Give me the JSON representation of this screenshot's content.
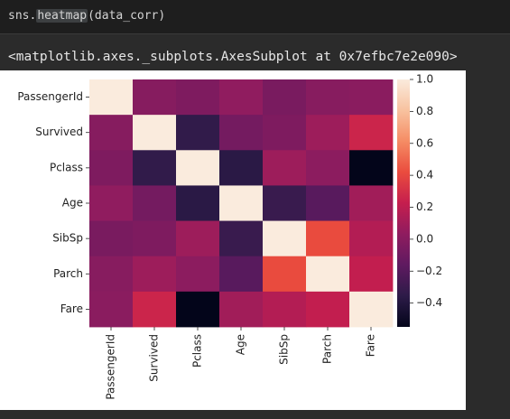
{
  "code_cell": {
    "prefix": "sns.",
    "function": "heatmap",
    "args": "(data_corr)"
  },
  "output": {
    "repr": "<matplotlib.axes._subplots.AxesSubplot at 0x7efbc7e2e090>"
  },
  "chart_data": {
    "type": "heatmap",
    "title": "",
    "xlabel": "",
    "ylabel": "",
    "colormap": "rocket",
    "labels": [
      "PassengerId",
      "Survived",
      "Pclass",
      "Age",
      "SibSp",
      "Parch",
      "Fare"
    ],
    "matrix": [
      [
        1.0,
        -0.005,
        -0.035,
        0.037,
        -0.058,
        -0.002,
        0.013
      ],
      [
        -0.005,
        1.0,
        -0.338,
        -0.077,
        -0.035,
        0.082,
        0.257
      ],
      [
        -0.035,
        -0.338,
        1.0,
        -0.369,
        0.083,
        0.018,
        -0.549
      ],
      [
        0.037,
        -0.077,
        -0.369,
        1.0,
        -0.308,
        -0.189,
        0.096
      ],
      [
        -0.058,
        -0.035,
        0.083,
        -0.308,
        1.0,
        0.415,
        0.16
      ],
      [
        -0.002,
        0.082,
        0.018,
        -0.189,
        0.415,
        1.0,
        0.216
      ],
      [
        0.013,
        0.257,
        -0.549,
        0.096,
        0.16,
        0.216,
        1.0
      ]
    ],
    "vmin": -0.549,
    "vmax": 1.0,
    "colorbar_ticks": [
      1.0,
      0.8,
      0.6,
      0.4,
      0.2,
      0.0,
      -0.2,
      -0.4
    ],
    "colorbar_tick_labels": [
      "1.0",
      "0.8",
      "0.6",
      "0.4",
      "0.2",
      "0.0",
      "−0.2",
      "−0.4"
    ]
  }
}
